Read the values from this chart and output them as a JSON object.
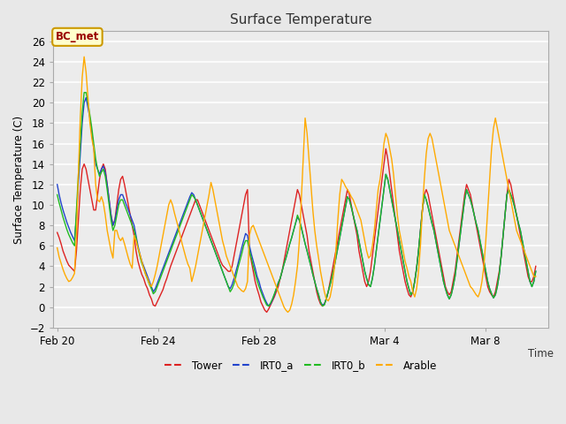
{
  "title": "Surface Temperature",
  "ylabel": "Surface Temperature (C)",
  "ylim": [
    -2,
    27
  ],
  "yticks": [
    -2,
    0,
    2,
    4,
    6,
    8,
    10,
    12,
    14,
    16,
    18,
    20,
    22,
    24,
    26
  ],
  "bg_color": "#e8e8e8",
  "plot_bg_color": "#ececec",
  "grid_color": "#ffffff",
  "annotation_text": "BC_met",
  "annotation_bg": "#ffffcc",
  "annotation_border": "#cc9900",
  "legend_entries": [
    "Tower",
    "IRT0_a",
    "IRT0_b",
    "Arable"
  ],
  "line_colors": [
    "#dd2222",
    "#2244cc",
    "#22bb22",
    "#ffaa00"
  ],
  "line_width": 1.0,
  "x_tick_labels": [
    "Feb 20",
    "Feb 24",
    "Feb 28",
    "Mar 4",
    "Mar 8"
  ],
  "tower": [
    7.3,
    6.8,
    6.2,
    5.5,
    5.0,
    4.5,
    4.1,
    3.9,
    3.7,
    3.5,
    5.5,
    8.5,
    11.5,
    13.5,
    14.0,
    13.5,
    12.5,
    11.5,
    10.5,
    9.5,
    9.5,
    11.0,
    12.5,
    13.5,
    14.0,
    13.5,
    12.0,
    10.5,
    9.0,
    8.0,
    8.5,
    10.0,
    11.5,
    12.5,
    12.8,
    12.0,
    11.0,
    10.0,
    9.0,
    8.0,
    7.0,
    5.5,
    4.5,
    3.8,
    3.2,
    2.8,
    2.2,
    1.8,
    1.2,
    0.8,
    0.2,
    0.1,
    0.5,
    0.9,
    1.3,
    1.7,
    2.3,
    2.8,
    3.4,
    4.0,
    4.5,
    5.0,
    5.5,
    6.0,
    6.5,
    7.0,
    7.5,
    8.0,
    8.5,
    9.0,
    9.5,
    10.0,
    10.5,
    10.5,
    10.0,
    9.5,
    9.0,
    8.5,
    8.0,
    7.5,
    7.0,
    6.5,
    6.0,
    5.5,
    5.0,
    4.5,
    4.1,
    3.9,
    3.7,
    3.5,
    3.5,
    4.0,
    5.0,
    6.0,
    7.0,
    8.0,
    9.0,
    10.0,
    11.0,
    11.5,
    5.5,
    4.5,
    3.5,
    2.5,
    1.8,
    1.2,
    0.5,
    0.1,
    -0.3,
    -0.5,
    -0.2,
    0.2,
    0.6,
    1.0,
    1.5,
    2.0,
    2.8,
    3.5,
    4.5,
    5.5,
    6.5,
    7.5,
    8.5,
    9.5,
    10.5,
    11.5,
    11.0,
    10.0,
    9.0,
    8.0,
    7.0,
    5.5,
    4.5,
    3.5,
    2.5,
    1.5,
    0.8,
    0.3,
    0.1,
    0.3,
    0.8,
    1.5,
    2.5,
    3.5,
    4.5,
    5.5,
    6.5,
    7.5,
    8.5,
    9.5,
    10.5,
    11.5,
    11.0,
    10.0,
    9.0,
    8.0,
    7.0,
    5.5,
    4.5,
    3.5,
    2.5,
    2.0,
    2.5,
    3.5,
    5.0,
    6.5,
    8.0,
    9.5,
    11.0,
    12.5,
    14.0,
    15.5,
    14.5,
    13.0,
    11.5,
    10.0,
    8.5,
    7.0,
    5.5,
    4.5,
    3.5,
    2.5,
    1.8,
    1.2,
    1.0,
    1.5,
    2.5,
    3.8,
    5.5,
    7.5,
    9.5,
    11.0,
    11.5,
    11.0,
    10.0,
    9.0,
    8.0,
    7.0,
    6.0,
    5.0,
    4.0,
    3.0,
    2.0,
    1.5,
    1.2,
    1.5,
    2.5,
    3.5,
    5.0,
    6.5,
    8.0,
    9.5,
    11.0,
    12.0,
    11.5,
    11.0,
    10.0,
    9.0,
    8.0,
    7.0,
    6.0,
    5.0,
    4.0,
    3.0,
    2.0,
    1.5,
    1.2,
    1.0,
    1.5,
    2.5,
    3.5,
    5.0,
    7.0,
    9.0,
    11.0,
    12.5,
    12.0,
    11.0,
    10.0,
    9.0,
    8.0,
    7.0,
    6.0,
    5.0,
    4.0,
    3.0,
    2.5,
    2.5,
    3.0,
    4.0
  ],
  "irt0_a": [
    12.0,
    11.0,
    10.2,
    9.5,
    8.9,
    8.3,
    7.8,
    7.3,
    6.9,
    6.5,
    9.0,
    12.0,
    15.0,
    18.0,
    20.0,
    20.5,
    19.5,
    18.5,
    17.0,
    15.5,
    14.0,
    13.5,
    13.0,
    13.5,
    13.8,
    13.2,
    12.0,
    10.5,
    9.0,
    8.0,
    8.5,
    9.5,
    10.5,
    11.0,
    11.0,
    10.5,
    10.0,
    9.5,
    9.0,
    8.5,
    8.0,
    7.0,
    6.0,
    5.2,
    4.5,
    4.0,
    3.5,
    3.0,
    2.5,
    2.0,
    1.5,
    1.8,
    2.3,
    2.8,
    3.3,
    3.8,
    4.3,
    4.8,
    5.3,
    5.8,
    6.3,
    6.8,
    7.3,
    7.8,
    8.3,
    8.8,
    9.3,
    9.8,
    10.3,
    10.8,
    11.2,
    11.0,
    10.5,
    10.0,
    9.5,
    9.0,
    8.5,
    8.0,
    7.5,
    7.0,
    6.5,
    6.0,
    5.5,
    5.0,
    4.5,
    4.0,
    3.5,
    3.0,
    2.5,
    2.0,
    1.8,
    2.2,
    2.8,
    3.5,
    4.2,
    5.0,
    5.8,
    6.5,
    7.2,
    7.0,
    6.0,
    5.2,
    4.5,
    3.8,
    3.0,
    2.5,
    1.8,
    1.3,
    0.8,
    0.4,
    0.1,
    0.3,
    0.7,
    1.2,
    1.8,
    2.4,
    2.8,
    3.5,
    4.2,
    4.8,
    5.5,
    6.2,
    6.8,
    7.5,
    8.2,
    8.8,
    8.5,
    7.8,
    7.0,
    6.2,
    5.5,
    4.8,
    4.0,
    3.2,
    2.5,
    1.8,
    1.2,
    0.5,
    0.2,
    0.3,
    0.8,
    1.5,
    2.2,
    3.0,
    3.8,
    4.8,
    5.8,
    6.8,
    7.8,
    8.8,
    9.8,
    10.8,
    10.5,
    9.8,
    9.0,
    8.2,
    7.5,
    6.5,
    5.5,
    4.5,
    3.5,
    2.8,
    2.2,
    2.0,
    2.8,
    4.0,
    5.5,
    7.0,
    8.5,
    10.0,
    11.5,
    13.0,
    12.5,
    11.5,
    10.5,
    9.5,
    8.5,
    7.5,
    6.5,
    5.5,
    4.5,
    3.5,
    2.5,
    1.8,
    1.2,
    1.5,
    2.5,
    3.8,
    5.5,
    7.5,
    9.5,
    11.0,
    10.5,
    9.8,
    9.0,
    8.2,
    7.5,
    6.5,
    5.5,
    4.5,
    3.5,
    2.5,
    1.8,
    1.2,
    0.8,
    1.2,
    2.0,
    3.0,
    4.5,
    6.0,
    7.5,
    9.0,
    10.5,
    11.5,
    11.0,
    10.5,
    9.8,
    9.0,
    8.2,
    7.5,
    6.5,
    5.5,
    4.5,
    3.5,
    2.5,
    1.8,
    1.3,
    0.9,
    1.2,
    2.0,
    3.2,
    5.0,
    7.0,
    9.0,
    11.0,
    11.5,
    11.0,
    10.5,
    9.8,
    9.0,
    8.2,
    7.5,
    6.5,
    5.5,
    4.5,
    3.5,
    2.5,
    2.0,
    2.5,
    3.5
  ],
  "irt0_b": [
    11.0,
    10.2,
    9.5,
    8.8,
    8.2,
    7.6,
    7.1,
    6.7,
    6.3,
    6.0,
    9.5,
    13.0,
    16.0,
    19.0,
    21.0,
    21.0,
    20.0,
    18.8,
    17.5,
    16.0,
    14.5,
    13.5,
    12.8,
    13.2,
    13.5,
    12.8,
    11.5,
    10.0,
    8.5,
    7.5,
    8.0,
    9.0,
    10.0,
    10.5,
    10.5,
    10.0,
    9.5,
    9.0,
    8.5,
    8.0,
    7.5,
    6.8,
    5.8,
    5.0,
    4.3,
    3.8,
    3.2,
    2.7,
    2.2,
    1.8,
    1.3,
    1.5,
    2.0,
    2.5,
    3.0,
    3.5,
    4.0,
    4.5,
    5.0,
    5.5,
    6.0,
    6.5,
    7.0,
    7.5,
    8.0,
    8.5,
    9.0,
    9.5,
    10.0,
    10.5,
    11.0,
    10.8,
    10.5,
    10.0,
    9.5,
    9.0,
    8.5,
    8.0,
    7.5,
    7.0,
    6.5,
    6.0,
    5.5,
    5.0,
    4.5,
    4.0,
    3.5,
    3.0,
    2.5,
    2.0,
    1.5,
    1.8,
    2.3,
    3.0,
    3.8,
    4.5,
    5.2,
    6.0,
    6.5,
    6.5,
    5.5,
    4.8,
    4.0,
    3.3,
    2.6,
    2.0,
    1.5,
    1.0,
    0.6,
    0.2,
    0.1,
    0.4,
    0.8,
    1.3,
    1.8,
    2.3,
    2.8,
    3.5,
    4.2,
    4.8,
    5.5,
    6.2,
    6.8,
    7.5,
    8.2,
    9.0,
    8.5,
    7.8,
    7.0,
    6.2,
    5.5,
    4.7,
    4.0,
    3.2,
    2.5,
    1.8,
    1.2,
    0.5,
    0.1,
    0.2,
    0.8,
    1.5,
    2.2,
    3.0,
    3.8,
    4.8,
    5.8,
    6.8,
    7.8,
    8.8,
    9.8,
    10.8,
    10.5,
    9.8,
    9.0,
    8.2,
    7.5,
    6.5,
    5.5,
    4.5,
    3.5,
    2.8,
    2.2,
    2.0,
    2.8,
    4.0,
    5.5,
    7.0,
    8.5,
    10.0,
    11.5,
    13.0,
    12.5,
    11.5,
    10.5,
    9.5,
    8.5,
    7.5,
    6.5,
    5.5,
    4.5,
    3.5,
    2.5,
    1.8,
    1.2,
    1.5,
    2.5,
    3.8,
    5.5,
    7.5,
    9.5,
    11.0,
    10.5,
    9.8,
    9.0,
    8.2,
    7.5,
    6.5,
    5.5,
    4.5,
    3.5,
    2.5,
    1.8,
    1.2,
    0.8,
    1.2,
    2.0,
    3.0,
    4.5,
    6.0,
    7.5,
    9.0,
    10.5,
    11.5,
    11.0,
    10.5,
    9.8,
    9.0,
    8.2,
    7.5,
    6.5,
    5.5,
    4.5,
    3.5,
    2.5,
    1.8,
    1.3,
    0.9,
    1.2,
    2.0,
    3.2,
    5.0,
    7.0,
    9.0,
    11.0,
    11.5,
    11.0,
    10.5,
    9.8,
    9.0,
    8.2,
    7.5,
    6.5,
    5.5,
    4.5,
    3.5,
    2.5,
    2.0,
    2.5,
    3.5
  ],
  "arable": [
    5.8,
    4.9,
    4.3,
    3.7,
    3.2,
    2.8,
    2.5,
    2.6,
    2.9,
    3.3,
    7.0,
    13.0,
    18.5,
    22.5,
    24.5,
    23.0,
    20.5,
    18.0,
    16.5,
    15.5,
    12.0,
    10.5,
    10.3,
    10.8,
    10.2,
    9.0,
    7.5,
    6.5,
    5.5,
    4.8,
    7.5,
    7.5,
    6.8,
    6.5,
    6.8,
    6.2,
    5.5,
    4.8,
    4.2,
    3.8,
    7.0,
    6.5,
    5.8,
    5.2,
    4.5,
    3.8,
    3.2,
    2.8,
    2.3,
    2.0,
    2.5,
    3.2,
    4.0,
    5.0,
    6.0,
    7.0,
    8.0,
    9.0,
    10.0,
    10.5,
    10.0,
    9.2,
    8.5,
    7.8,
    7.0,
    6.2,
    5.5,
    4.8,
    4.2,
    3.8,
    2.5,
    3.2,
    4.0,
    5.0,
    6.0,
    7.0,
    8.0,
    9.0,
    10.0,
    11.0,
    12.2,
    11.5,
    10.5,
    9.5,
    8.5,
    7.5,
    6.5,
    5.8,
    5.0,
    4.5,
    4.0,
    3.5,
    3.0,
    2.5,
    2.0,
    1.8,
    1.6,
    1.5,
    1.8,
    2.5,
    7.0,
    7.8,
    8.0,
    7.5,
    7.0,
    6.5,
    6.0,
    5.5,
    5.0,
    4.5,
    4.0,
    3.5,
    3.0,
    2.5,
    2.0,
    1.5,
    1.0,
    0.5,
    0.0,
    -0.3,
    -0.5,
    -0.3,
    0.3,
    1.2,
    2.5,
    4.0,
    6.5,
    10.5,
    14.5,
    18.5,
    17.0,
    14.5,
    12.0,
    9.5,
    7.5,
    6.0,
    4.8,
    3.5,
    2.5,
    1.5,
    0.8,
    0.6,
    1.0,
    2.0,
    3.5,
    5.5,
    8.5,
    11.0,
    12.5,
    12.2,
    11.8,
    11.5,
    11.2,
    10.8,
    10.5,
    10.0,
    9.5,
    9.0,
    8.5,
    7.5,
    6.5,
    5.5,
    4.8,
    5.0,
    6.0,
    7.5,
    9.5,
    11.5,
    12.5,
    14.0,
    16.0,
    17.0,
    16.5,
    15.5,
    14.5,
    13.0,
    11.0,
    9.0,
    7.5,
    6.5,
    5.5,
    4.5,
    3.8,
    3.0,
    2.5,
    1.5,
    1.0,
    1.8,
    3.5,
    6.0,
    9.5,
    12.5,
    15.0,
    16.5,
    17.0,
    16.5,
    15.5,
    14.5,
    13.5,
    12.5,
    11.5,
    10.5,
    9.5,
    8.5,
    7.5,
    7.0,
    6.5,
    6.0,
    5.5,
    5.0,
    4.5,
    4.0,
    3.5,
    3.0,
    2.5,
    2.0,
    1.8,
    1.5,
    1.2,
    1.0,
    1.5,
    2.5,
    4.0,
    6.5,
    9.5,
    12.5,
    15.5,
    17.5,
    18.5,
    17.5,
    16.5,
    15.5,
    14.5,
    13.5,
    12.5,
    11.5,
    10.5,
    9.5,
    8.5,
    7.5,
    7.0,
    6.5,
    6.0,
    5.5,
    5.0,
    4.5,
    4.0,
    3.5,
    3.0,
    3.0
  ]
}
